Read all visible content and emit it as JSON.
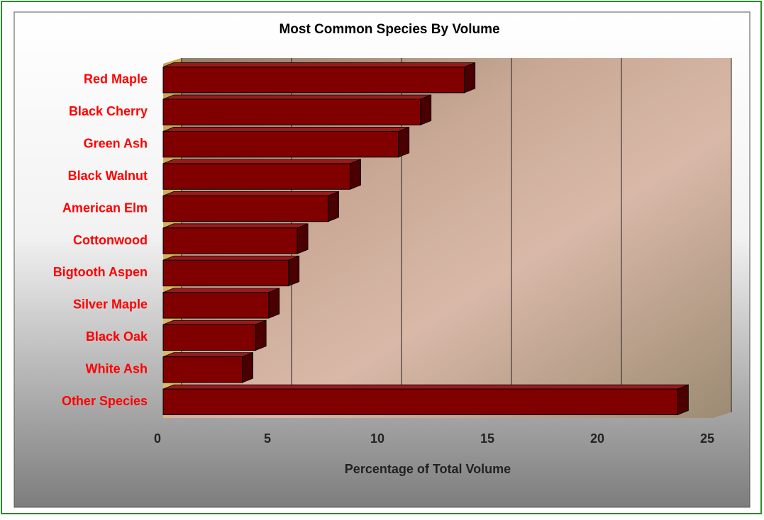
{
  "chart_data": {
    "type": "bar3d",
    "orientation": "horizontal",
    "title": "Most Common Species By Volume",
    "x_label": "Percentage of Total Volume",
    "categories": [
      "Red Maple",
      "Black Cherry",
      "Green Ash",
      "Black Walnut",
      "American Elm",
      "Cottonwood",
      "Bigtooth Aspen",
      "Silver Maple",
      "Black Oak",
      "White Ash",
      "Other Species"
    ],
    "values": [
      13.7,
      11.7,
      10.7,
      8.5,
      7.5,
      6.1,
      5.7,
      4.8,
      4.2,
      3.6,
      23.4
    ],
    "color": "#800000",
    "xlim": [
      0,
      25
    ],
    "xticks": [
      0,
      5,
      10,
      15,
      20,
      25
    ],
    "grid": true
  }
}
